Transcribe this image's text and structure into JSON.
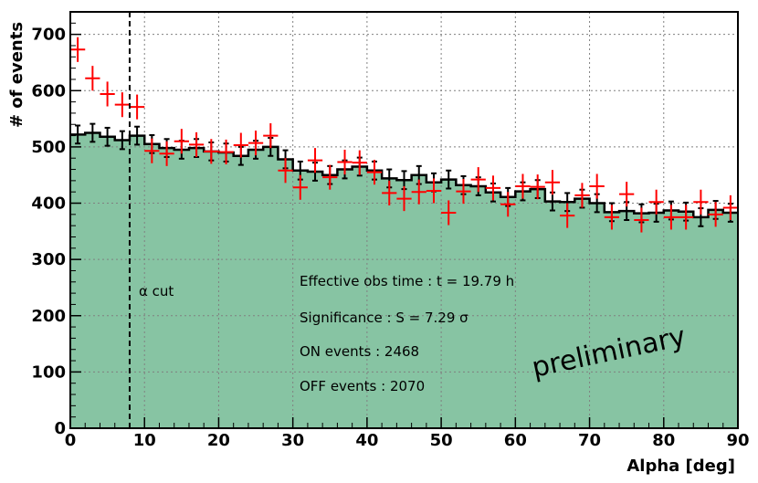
{
  "chart_data": {
    "type": "histogram",
    "title": "",
    "xlabel": "Alpha [deg]",
    "ylabel": "# of events",
    "xlim": [
      0,
      90
    ],
    "ylim": [
      0,
      740
    ],
    "grid": true,
    "x_ticks": [
      0,
      10,
      20,
      30,
      40,
      50,
      60,
      70,
      80,
      90
    ],
    "y_ticks": [
      0,
      100,
      200,
      300,
      400,
      500,
      600,
      700
    ],
    "bin_width": 2,
    "colors": {
      "fill": "#87c4a3",
      "on": "#ff0000",
      "off": "#000000",
      "grid": "#808080"
    },
    "series": [
      {
        "name": "OFF",
        "style": "filled-histogram-with-errors",
        "x": [
          1,
          3,
          5,
          7,
          9,
          11,
          13,
          15,
          17,
          19,
          21,
          23,
          25,
          27,
          29,
          31,
          33,
          35,
          37,
          39,
          41,
          43,
          45,
          47,
          49,
          51,
          53,
          55,
          57,
          59,
          61,
          63,
          65,
          67,
          69,
          71,
          73,
          75,
          77,
          79,
          81,
          83,
          85,
          87,
          89
        ],
        "values": [
          522,
          525,
          518,
          512,
          520,
          505,
          498,
          495,
          498,
          492,
          490,
          484,
          495,
          500,
          478,
          458,
          456,
          450,
          460,
          465,
          458,
          444,
          441,
          450,
          437,
          442,
          432,
          430,
          419,
          411,
          421,
          425,
          403,
          402,
          408,
          400,
          384,
          386,
          382,
          383,
          387,
          385,
          375,
          388,
          383
        ],
        "errors": [
          16,
          16,
          16,
          16,
          16,
          16,
          16,
          16,
          16,
          16,
          16,
          16,
          16,
          16,
          16,
          16,
          16,
          16,
          16,
          16,
          16,
          16,
          16,
          16,
          16,
          16,
          16,
          16,
          16,
          16,
          16,
          16,
          16,
          16,
          16,
          16,
          16,
          16,
          16,
          16,
          16,
          16,
          16,
          16,
          16
        ]
      },
      {
        "name": "ON",
        "style": "points-with-errors",
        "x": [
          1,
          3,
          5,
          7,
          9,
          11,
          13,
          15,
          17,
          19,
          21,
          23,
          25,
          27,
          29,
          31,
          33,
          35,
          37,
          39,
          41,
          43,
          45,
          47,
          49,
          51,
          53,
          55,
          57,
          59,
          61,
          63,
          65,
          67,
          69,
          71,
          73,
          75,
          77,
          79,
          81,
          83,
          85,
          87,
          89
        ],
        "values": [
          673,
          622,
          594,
          575,
          571,
          493,
          488,
          510,
          504,
          492,
          491,
          503,
          507,
          520,
          458,
          428,
          476,
          446,
          473,
          472,
          455,
          418,
          408,
          420,
          422,
          383,
          421,
          442,
          427,
          398,
          430,
          429,
          437,
          378,
          414,
          430,
          375,
          416,
          370,
          402,
          375,
          375,
          402,
          380,
          392
        ],
        "errors": [
          22,
          22,
          22,
          22,
          22,
          22,
          22,
          22,
          22,
          22,
          22,
          22,
          22,
          22,
          22,
          22,
          22,
          22,
          22,
          22,
          22,
          22,
          22,
          22,
          22,
          22,
          22,
          22,
          22,
          22,
          22,
          22,
          22,
          22,
          22,
          22,
          22,
          22,
          22,
          22,
          22,
          22,
          22,
          22,
          22
        ]
      }
    ],
    "cut_line": {
      "x": 8,
      "label": "α cut"
    },
    "annotations": [
      "Effective obs time : t = 19.79 h",
      "Significance : S = 7.29 σ",
      "ON events : 2468",
      "OFF events : 2070"
    ],
    "watermark": "preliminary"
  }
}
